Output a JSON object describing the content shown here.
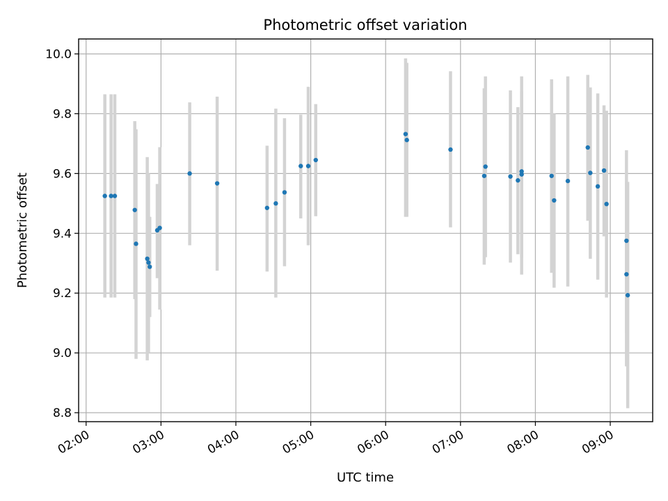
{
  "chart_data": {
    "type": "scatter",
    "title": "Photometric offset variation",
    "xlabel": "UTC time",
    "ylabel": "Photometric offset",
    "x_tick_labels": [
      "02:00",
      "03:00",
      "04:00",
      "05:00",
      "06:00",
      "07:00",
      "08:00",
      "09:00"
    ],
    "y_tick_labels": [
      "8.8",
      "9.0",
      "9.2",
      "9.4",
      "9.6",
      "9.8",
      "10.0"
    ],
    "x_ticks": [
      "02:00",
      "03:00",
      "04:00",
      "05:00",
      "06:00",
      "07:00",
      "08:00",
      "09:00"
    ],
    "y_ticks": [
      8.8,
      9.0,
      9.2,
      9.4,
      9.6,
      9.8,
      10.0
    ],
    "xlim": [
      "01:54",
      "09:34"
    ],
    "ylim": [
      8.77,
      10.05
    ],
    "grid": true,
    "colors": {
      "point": "#1f77b4",
      "errorbar": "#d3d3d3",
      "grid": "#b0b0b0"
    },
    "points": [
      {
        "x": "02:15",
        "y": 9.525,
        "lo": 9.185,
        "hi": 9.865
      },
      {
        "x": "02:20",
        "y": 9.525,
        "lo": 9.185,
        "hi": 9.865
      },
      {
        "x": "02:23",
        "y": 9.525,
        "lo": 9.185,
        "hi": 9.865
      },
      {
        "x": "02:39",
        "y": 9.478,
        "lo": 9.18,
        "hi": 9.775
      },
      {
        "x": "02:40",
        "y": 9.365,
        "lo": 8.98,
        "hi": 9.748
      },
      {
        "x": "02:49",
        "y": 9.315,
        "lo": 8.975,
        "hi": 9.655
      },
      {
        "x": "02:50",
        "y": 9.302,
        "lo": 9.0,
        "hi": 9.6
      },
      {
        "x": "02:51",
        "y": 9.288,
        "lo": 9.12,
        "hi": 9.455
      },
      {
        "x": "02:57",
        "y": 9.41,
        "lo": 9.25,
        "hi": 9.565
      },
      {
        "x": "02:59",
        "y": 9.418,
        "lo": 9.145,
        "hi": 9.688
      },
      {
        "x": "03:23",
        "y": 9.6,
        "lo": 9.36,
        "hi": 9.838
      },
      {
        "x": "03:45",
        "y": 9.567,
        "lo": 9.275,
        "hi": 9.857
      },
      {
        "x": "04:25",
        "y": 9.485,
        "lo": 9.272,
        "hi": 9.693
      },
      {
        "x": "04:32",
        "y": 9.5,
        "lo": 9.185,
        "hi": 9.817
      },
      {
        "x": "04:39",
        "y": 9.537,
        "lo": 9.29,
        "hi": 9.785
      },
      {
        "x": "04:52",
        "y": 9.625,
        "lo": 9.45,
        "hi": 9.797
      },
      {
        "x": "04:58",
        "y": 9.625,
        "lo": 9.36,
        "hi": 9.89
      },
      {
        "x": "05:04",
        "y": 9.645,
        "lo": 9.457,
        "hi": 9.832
      },
      {
        "x": "06:16",
        "y": 9.732,
        "lo": 9.455,
        "hi": 9.985
      },
      {
        "x": "06:17",
        "y": 9.712,
        "lo": 9.455,
        "hi": 9.97
      },
      {
        "x": "06:52",
        "y": 9.68,
        "lo": 9.42,
        "hi": 9.942
      },
      {
        "x": "07:19",
        "y": 9.592,
        "lo": 9.295,
        "hi": 9.885
      },
      {
        "x": "07:20",
        "y": 9.623,
        "lo": 9.32,
        "hi": 9.925
      },
      {
        "x": "07:40",
        "y": 9.59,
        "lo": 9.302,
        "hi": 9.878
      },
      {
        "x": "07:46",
        "y": 9.577,
        "lo": 9.33,
        "hi": 9.822
      },
      {
        "x": "07:49",
        "y": 9.607,
        "lo": 9.262,
        "hi": 9.925
      },
      {
        "x": "07:49",
        "y": 9.597,
        "lo": 9.32,
        "hi": 9.875
      },
      {
        "x": "08:13",
        "y": 9.592,
        "lo": 9.268,
        "hi": 9.915
      },
      {
        "x": "08:15",
        "y": 9.51,
        "lo": 9.218,
        "hi": 9.8
      },
      {
        "x": "08:26",
        "y": 9.575,
        "lo": 9.222,
        "hi": 9.925
      },
      {
        "x": "08:42",
        "y": 9.687,
        "lo": 9.442,
        "hi": 9.93
      },
      {
        "x": "08:44",
        "y": 9.602,
        "lo": 9.315,
        "hi": 9.888
      },
      {
        "x": "08:50",
        "y": 9.557,
        "lo": 9.245,
        "hi": 9.868
      },
      {
        "x": "08:55",
        "y": 9.61,
        "lo": 9.39,
        "hi": 9.828
      },
      {
        "x": "08:57",
        "y": 9.498,
        "lo": 9.185,
        "hi": 9.81
      },
      {
        "x": "09:13",
        "y": 9.375,
        "lo": 9.068,
        "hi": 9.678
      },
      {
        "x": "09:13",
        "y": 9.263,
        "lo": 8.955,
        "hi": 9.572
      },
      {
        "x": "09:14",
        "y": 9.193,
        "lo": 8.815,
        "hi": 9.572
      }
    ]
  }
}
